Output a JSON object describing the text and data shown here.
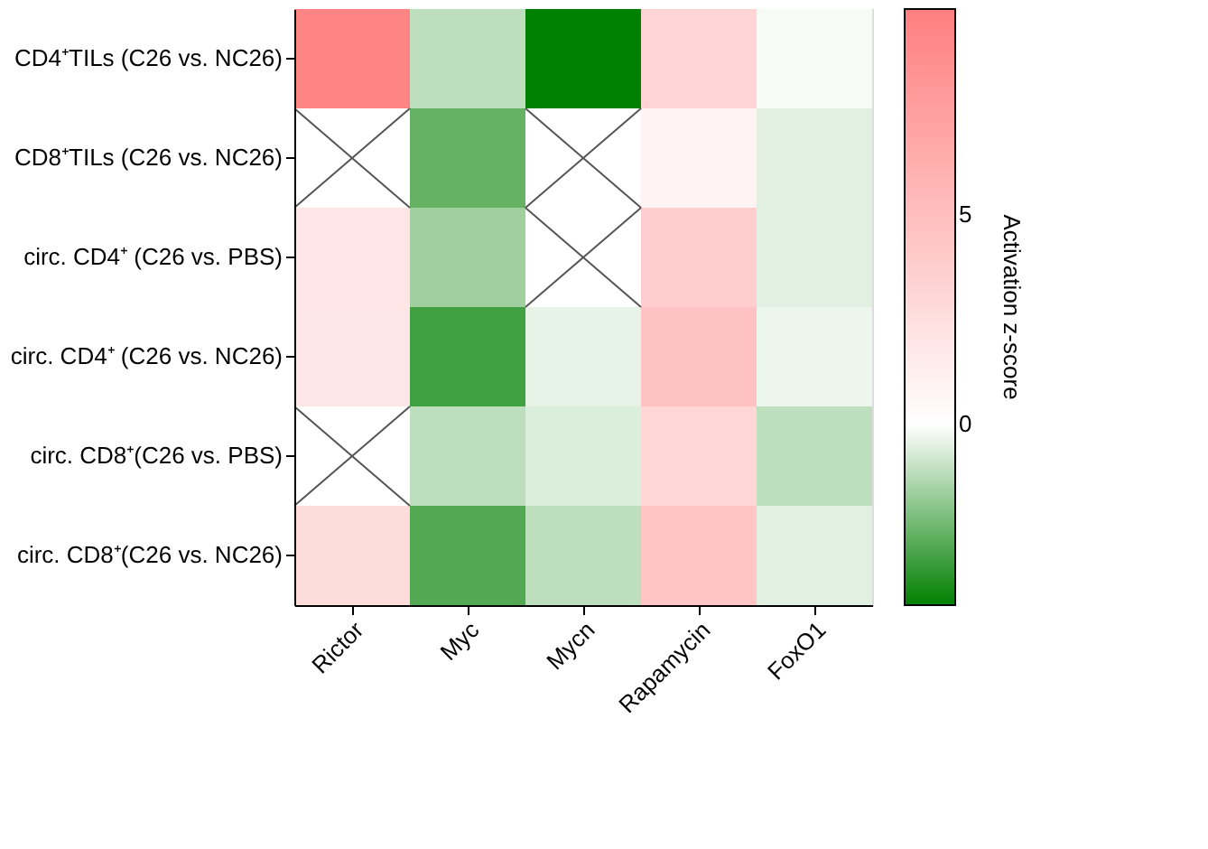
{
  "chart_data": {
    "type": "heatmap",
    "categories": [
      "Rictor",
      "Myc",
      "Mycn",
      "Rapamycin",
      "FoxO1"
    ],
    "y_categories": [
      "CD4⁺TILs (C26 vs. NC26)",
      "CD8⁺TILs (C26 vs. NC26)",
      "circ. CD4⁺ (C26 vs. PBS)",
      "circ. CD4⁺ (C26 vs. NC26)",
      "circ. CD8⁺(C26 vs. PBS)",
      "circ. CD8⁺(C26 vs. NC26)"
    ],
    "cells": [
      [
        9.5,
        -1.1,
        -4.3,
        3.3,
        -0.15
      ],
      [
        null,
        -2.6,
        null,
        0.9,
        -0.5
      ],
      [
        2.0,
        -1.6,
        null,
        3.9,
        -0.5
      ],
      [
        1.9,
        -3.2,
        -0.4,
        4.7,
        -0.3
      ],
      [
        null,
        -1.1,
        -0.6,
        3.1,
        -1.1
      ],
      [
        2.7,
        -2.9,
        -1.1,
        4.5,
        -0.5
      ]
    ],
    "clabel": "Activation z-score",
    "clim": [
      -4.3,
      9.9
    ],
    "cticks": [
      0,
      5
    ]
  }
}
